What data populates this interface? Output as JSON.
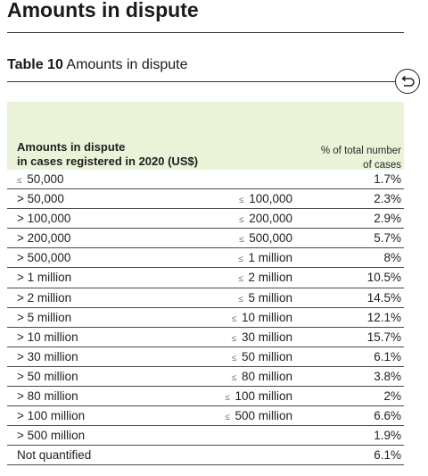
{
  "page": {
    "title": "Amounts in dispute"
  },
  "table": {
    "label": "Table 10",
    "caption": "Amounts in dispute",
    "header_left_line1": "Amounts in dispute",
    "header_left_line2": "in cases registered in 2020 (US$)",
    "header_right_line1": "% of total number",
    "header_right_line2": "of cases",
    "le_symbol": "≤",
    "rows": [
      {
        "from": "≤  50,000",
        "to": "",
        "pct": "1.7%"
      },
      {
        "from": "> 50,000",
        "to": "≤ 100,000",
        "pct": "2.3%"
      },
      {
        "from": "> 100,000",
        "to": "≤ 200,000",
        "pct": "2.9%"
      },
      {
        "from": "> 200,000",
        "to": "≤ 500,000",
        "pct": "5.7%"
      },
      {
        "from": "> 500,000",
        "to": "≤ 1 million",
        "pct": "8%"
      },
      {
        "from": "> 1 million",
        "to": "≤ 2 million",
        "pct": "10.5%"
      },
      {
        "from": "> 2 million",
        "to": "≤ 5 million",
        "pct": "14.5%"
      },
      {
        "from": "> 5 million",
        "to": "≤ 10 million",
        "pct": "12.1%"
      },
      {
        "from": "> 10 million",
        "to": "≤ 30 million",
        "pct": "15.7%"
      },
      {
        "from": "> 30 million",
        "to": "≤ 50 million",
        "pct": "6.1%"
      },
      {
        "from": "> 50 million",
        "to": "≤ 80 million",
        "pct": "3.8%"
      },
      {
        "from": "> 80 million",
        "to": "≤ 100 million",
        "pct": "2%"
      },
      {
        "from": "> 100 million",
        "to": "≤ 500 million",
        "pct": "6.6%"
      },
      {
        "from": "> 500 million",
        "to": "",
        "pct": "1.9%"
      },
      {
        "from": "Not quantified",
        "to": "",
        "pct": "6.1%"
      }
    ]
  },
  "icons": {
    "back": "return-arrow-icon"
  },
  "colors": {
    "header_band": "#eaf2d8",
    "rule": "#333333"
  }
}
